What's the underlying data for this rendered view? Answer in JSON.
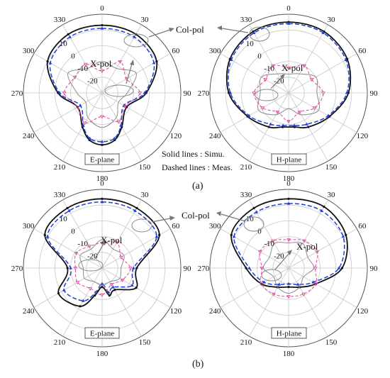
{
  "figure": {
    "sub_labels": [
      "(a)",
      "(b)"
    ],
    "notes": [
      "Solid lines : Simu.",
      "Dashed lines : Meas."
    ],
    "annotations": {
      "co_pol": "Col-pol",
      "x_pol": "X-pol"
    }
  },
  "colors": {
    "simu_co": "#111111",
    "meas_co": "#1f3fd6",
    "simu_x": "#8a8a8a",
    "meas_x": "#e0479e"
  },
  "chart_data": [
    {
      "type": "polar",
      "panel": "a-left",
      "plane_label": "E-plane",
      "angle_ticks": [
        "0",
        "30",
        "60",
        "90",
        "120",
        "150",
        "180",
        "210",
        "240",
        "270",
        "300",
        "330"
      ],
      "radial_ticks": [
        "10",
        "0",
        "-10",
        "-20"
      ],
      "rlim": [
        -30,
        20
      ],
      "grid": true,
      "series": [
        {
          "name": "Col-pol Simu.",
          "style": "solid",
          "color": "simu_co",
          "angles": [
            0,
            30,
            60,
            90,
            120,
            150,
            165,
            180,
            195,
            210,
            240,
            270,
            300,
            330
          ],
          "values": [
            13,
            13,
            10,
            -2,
            -12,
            -5,
            1,
            3,
            1,
            -5,
            -12,
            -2,
            10,
            13
          ]
        },
        {
          "name": "Col-pol Meas.",
          "style": "dashed",
          "color": "meas_co",
          "angles": [
            0,
            30,
            60,
            90,
            120,
            150,
            165,
            180,
            195,
            210,
            240,
            270,
            300,
            330
          ],
          "values": [
            11,
            11,
            8,
            -3,
            -14,
            -6,
            0,
            1,
            0,
            -6,
            -14,
            -3,
            8,
            11
          ]
        },
        {
          "name": "X-pol Simu.",
          "style": "solid",
          "color": "simu_x",
          "angles": [
            0,
            30,
            60,
            90,
            120,
            150,
            180,
            210,
            240,
            270,
            300,
            330
          ],
          "values": [
            -10,
            -12,
            -5,
            -14,
            -18,
            -12,
            -8,
            -12,
            -18,
            -14,
            -5,
            -12
          ]
        },
        {
          "name": "X-pol Meas.",
          "style": "dashed",
          "color": "meas_x",
          "angles": [
            0,
            30,
            60,
            90,
            120,
            150,
            180,
            210,
            240,
            270,
            300,
            330
          ],
          "values": [
            -16,
            -7,
            -12,
            -6,
            -13,
            -9,
            -15,
            -8,
            -12,
            -6,
            -10,
            -9
          ]
        }
      ]
    },
    {
      "type": "polar",
      "panel": "a-right",
      "plane_label": "H-plane",
      "angle_ticks": [
        "0",
        "30",
        "60",
        "90",
        "120",
        "150",
        "180",
        "210",
        "240",
        "270",
        "300",
        "330"
      ],
      "radial_ticks": [
        "10",
        "0",
        "-10",
        "-20"
      ],
      "rlim": [
        -30,
        20
      ],
      "grid": true,
      "series": [
        {
          "name": "Col-pol Simu.",
          "style": "solid",
          "color": "simu_co",
          "angles": [
            0,
            30,
            60,
            90,
            120,
            150,
            170,
            190,
            210,
            240,
            270,
            300,
            330
          ],
          "values": [
            15,
            15,
            13,
            8,
            0,
            -5,
            -8,
            -8,
            -5,
            0,
            8,
            13,
            15
          ]
        },
        {
          "name": "Col-pol Meas.",
          "style": "dashed",
          "color": "meas_co",
          "angles": [
            0,
            30,
            60,
            90,
            120,
            150,
            170,
            190,
            210,
            240,
            270,
            300,
            330
          ],
          "values": [
            14,
            14,
            12,
            7,
            -1,
            -7,
            -9,
            -9,
            -7,
            -1,
            7,
            12,
            14
          ]
        },
        {
          "name": "X-pol Simu.",
          "style": "solid",
          "color": "simu_x",
          "angles": [
            0,
            30,
            60,
            90,
            120,
            150,
            180,
            210,
            240,
            270,
            300,
            330
          ],
          "values": [
            -18,
            -16,
            -10,
            -12,
            -8,
            -14,
            -20,
            -14,
            -8,
            -12,
            -10,
            -16
          ]
        },
        {
          "name": "X-pol Meas.",
          "style": "dashed",
          "color": "meas_x",
          "angles": [
            0,
            30,
            60,
            90,
            120,
            150,
            180,
            210,
            240,
            270,
            300,
            330
          ],
          "values": [
            -14,
            -10,
            -13,
            -8,
            -11,
            -16,
            -12,
            -16,
            -11,
            -8,
            -13,
            -10
          ]
        }
      ]
    },
    {
      "type": "polar",
      "panel": "b-left",
      "plane_label": "E-plane",
      "angle_ticks": [
        "0",
        "30",
        "60",
        "90",
        "120",
        "150",
        "180",
        "210",
        "240",
        "270",
        "300",
        "330"
      ],
      "radial_ticks": [
        "10",
        "0",
        "-10",
        "-20"
      ],
      "rlim": [
        -30,
        20
      ],
      "grid": true,
      "series": [
        {
          "name": "Col-pol Simu.",
          "style": "solid",
          "color": "simu_co",
          "angles": [
            0,
            30,
            60,
            90,
            120,
            150,
            165,
            180,
            195,
            210,
            240,
            270,
            300,
            330
          ],
          "values": [
            14,
            14,
            12,
            -8,
            -5,
            -14,
            -12,
            -18,
            -12,
            -2,
            2,
            -8,
            12,
            14
          ]
        },
        {
          "name": "Col-pol Meas.",
          "style": "dashed",
          "color": "meas_co",
          "angles": [
            0,
            30,
            60,
            90,
            120,
            150,
            165,
            180,
            195,
            210,
            240,
            270,
            300,
            330
          ],
          "values": [
            12,
            12,
            10,
            -10,
            -8,
            -16,
            -14,
            -20,
            -14,
            -6,
            -2,
            -10,
            10,
            12
          ]
        },
        {
          "name": "X-pol Simu.",
          "style": "solid",
          "color": "simu_x",
          "angles": [
            0,
            30,
            60,
            90,
            120,
            150,
            180,
            210,
            240,
            270,
            300,
            330
          ],
          "values": [
            -12,
            -16,
            -14,
            -18,
            -17,
            -20,
            -19,
            -20,
            -17,
            -18,
            -14,
            -16
          ]
        },
        {
          "name": "X-pol Meas.",
          "style": "dashed",
          "color": "meas_x",
          "angles": [
            0,
            30,
            60,
            90,
            120,
            150,
            180,
            210,
            240,
            270,
            300,
            330
          ],
          "values": [
            -14,
            -11,
            -16,
            -12,
            -15,
            -18,
            -13,
            -15,
            -12,
            -13,
            -11,
            -14
          ]
        }
      ]
    },
    {
      "type": "polar",
      "panel": "b-right",
      "plane_label": "H-plane",
      "angle_ticks": [
        "0",
        "30",
        "60",
        "90",
        "120",
        "150",
        "180",
        "210",
        "240",
        "270",
        "300",
        "330"
      ],
      "radial_ticks": [
        "10",
        "0",
        "-10",
        "-20"
      ],
      "rlim": [
        -30,
        20
      ],
      "grid": true,
      "series": [
        {
          "name": "Col-pol Simu.",
          "style": "solid",
          "color": "simu_co",
          "angles": [
            0,
            30,
            60,
            90,
            120,
            150,
            180,
            210,
            240,
            270,
            300,
            330
          ],
          "values": [
            14,
            15,
            12,
            4,
            -10,
            -16,
            -18,
            -16,
            -10,
            -3,
            12,
            14
          ]
        },
        {
          "name": "Col-pol Meas.",
          "style": "dashed",
          "color": "meas_co",
          "angles": [
            0,
            30,
            60,
            90,
            120,
            150,
            180,
            210,
            240,
            270,
            300,
            330
          ],
          "values": [
            11,
            12,
            10,
            2,
            -12,
            -18,
            -20,
            -18,
            -12,
            -5,
            10,
            11
          ]
        },
        {
          "name": "X-pol Simu.",
          "style": "solid",
          "color": "simu_x",
          "angles": [
            0,
            30,
            60,
            90,
            120,
            150,
            180,
            210,
            240,
            270,
            300,
            330
          ],
          "values": [
            -14,
            -12,
            -16,
            -14,
            -19,
            -16,
            -14,
            -16,
            -19,
            -14,
            -16,
            -12
          ]
        },
        {
          "name": "X-pol Meas.",
          "style": "dashed",
          "color": "meas_x",
          "angles": [
            0,
            30,
            60,
            90,
            120,
            150,
            180,
            210,
            240,
            270,
            300,
            330
          ],
          "values": [
            -12,
            -10,
            -9,
            -13,
            -10,
            -11,
            -12,
            -11,
            -10,
            -13,
            -9,
            -10
          ]
        }
      ]
    }
  ]
}
